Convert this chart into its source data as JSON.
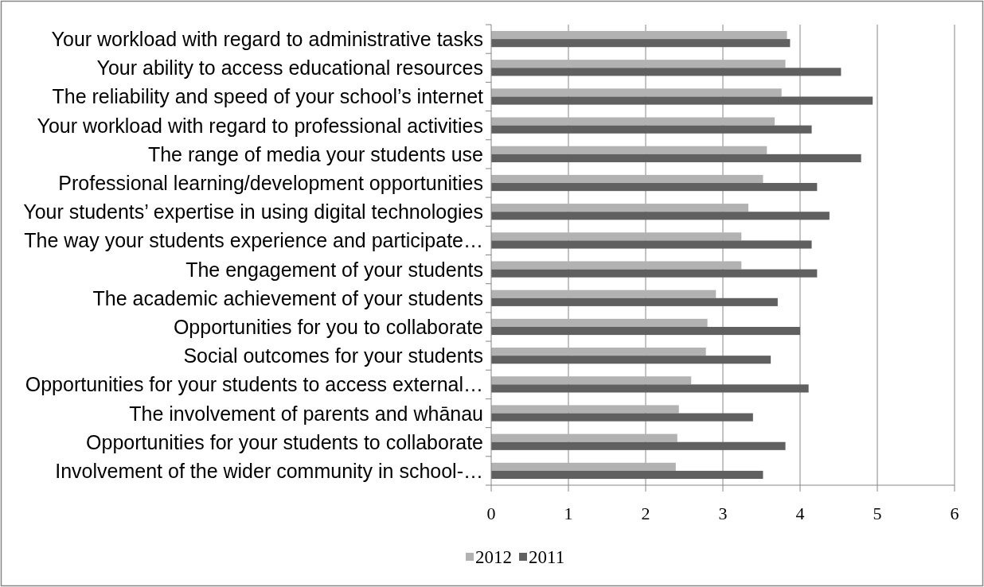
{
  "chart_data": {
    "type": "bar",
    "orientation": "horizontal",
    "categories": [
      "Your workload with regard to administrative tasks",
      "Your ability to access educational resources",
      "The reliability and speed of your school’s internet",
      "Your workload with regard to professional activities",
      "The range of media your students use",
      "Professional learning/development opportunities",
      "Your students’ expertise in using digital technologies",
      "The way your students experience and participate…",
      "The engagement of your students",
      "The academic achievement of your students",
      "Opportunities for you to collaborate",
      "Social outcomes for your students",
      "Opportunities for your students to access external…",
      "The involvement of parents and whānau",
      "Opportunities for your students to collaborate",
      "Involvement of the wider community in school-…"
    ],
    "series": [
      {
        "name": "2012",
        "color": "#b2b2b2",
        "values": [
          3.83,
          3.81,
          3.76,
          3.67,
          3.57,
          3.52,
          3.33,
          3.24,
          3.24,
          2.91,
          2.8,
          2.78,
          2.59,
          2.43,
          2.41,
          2.39
        ]
      },
      {
        "name": "2011",
        "color": "#606060",
        "values": [
          3.87,
          4.53,
          4.94,
          4.15,
          4.79,
          4.22,
          4.38,
          4.15,
          4.22,
          3.71,
          4.0,
          3.62,
          4.11,
          3.39,
          3.81,
          3.52
        ]
      }
    ],
    "xlim": [
      0,
      6
    ],
    "xticks": [
      0,
      1,
      2,
      3,
      4,
      5,
      6
    ],
    "grid": "x",
    "legend": "bottom"
  }
}
